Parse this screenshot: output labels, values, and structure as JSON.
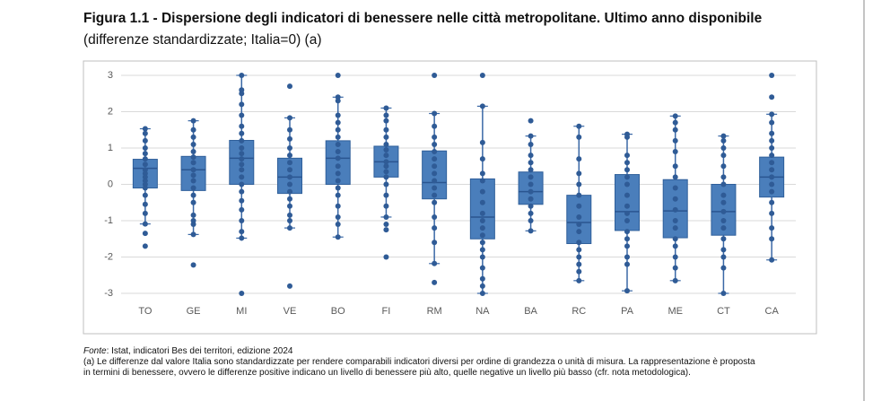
{
  "chart_data": {
    "type": "box",
    "title": "Figura 1.1 - Dispersione degli indicatori di benessere nelle città metropolitane. Ultimo anno disponibile",
    "subtitle": "(differenze standardizzate; Italia=0) (a)",
    "categories": [
      "TO",
      "GE",
      "MI",
      "VE",
      "BO",
      "FI",
      "RM",
      "NA",
      "BA",
      "RC",
      "PA",
      "ME",
      "CT",
      "CA"
    ],
    "color": "#4a7ebb",
    "point_color": "#2f5b96",
    "ylim": [
      -3,
      3
    ],
    "yticks": [
      -3,
      -2,
      -1,
      0,
      1,
      2,
      3
    ],
    "grid": true,
    "boxes": [
      {
        "low": -1.09,
        "q1": -0.1,
        "median": 0.44,
        "q3": 0.69,
        "high": 1.53,
        "points": [
          1.53,
          1.4,
          1.2,
          1.0,
          0.85,
          0.7,
          0.55,
          0.4,
          0.3,
          0.2,
          0.1,
          0,
          -0.1,
          -0.3,
          -0.55,
          -0.8,
          -1.09,
          -1.35,
          -1.7
        ]
      },
      {
        "low": -1.38,
        "q1": -0.17,
        "median": 0.4,
        "q3": 0.77,
        "high": 1.75,
        "points": [
          1.75,
          1.5,
          1.3,
          1.1,
          0.9,
          0.75,
          0.6,
          0.4,
          0.25,
          0.1,
          -0.1,
          -0.3,
          -0.5,
          -0.85,
          -1.0,
          -1.1,
          -1.38,
          -2.22
        ]
      },
      {
        "low": -1.48,
        "q1": 0,
        "median": 0.72,
        "q3": 1.21,
        "high": 3,
        "points": [
          3,
          2.6,
          2.5,
          2.2,
          1.9,
          1.6,
          1.4,
          1.2,
          1.0,
          0.85,
          0.7,
          0.55,
          0.4,
          0.2,
          0,
          -0.2,
          -0.45,
          -0.7,
          -1.0,
          -1.3,
          -1.48,
          -3
        ]
      },
      {
        "low": -1.2,
        "q1": -0.25,
        "median": 0.2,
        "q3": 0.72,
        "high": 1.83,
        "points": [
          2.7,
          1.83,
          1.5,
          1.25,
          1.0,
          0.8,
          0.6,
          0.4,
          0.2,
          0,
          -0.2,
          -0.4,
          -0.6,
          -0.85,
          -1.0,
          -1.2,
          -2.8
        ]
      },
      {
        "low": -1.45,
        "q1": 0,
        "median": 0.72,
        "q3": 1.2,
        "high": 2.4,
        "points": [
          3,
          2.4,
          2.3,
          1.9,
          1.7,
          1.5,
          1.3,
          1.1,
          0.9,
          0.72,
          0.5,
          0.3,
          0.1,
          -0.1,
          -0.3,
          -0.6,
          -0.9,
          -1.1,
          -1.45
        ]
      },
      {
        "low": -0.9,
        "q1": 0.2,
        "median": 0.62,
        "q3": 1.05,
        "high": 2.1,
        "points": [
          2.1,
          1.9,
          1.75,
          1.5,
          1.3,
          1.1,
          0.95,
          0.8,
          0.62,
          0.5,
          0.35,
          0.2,
          0,
          -0.3,
          -0.6,
          -0.9,
          -1.1,
          -1.25,
          -2
        ]
      },
      {
        "low": -2.18,
        "q1": -0.4,
        "median": 0.05,
        "q3": 0.92,
        "high": 1.95,
        "points": [
          3,
          1.95,
          1.6,
          1.3,
          1.1,
          0.9,
          0.7,
          0.5,
          0.3,
          0.1,
          -0.1,
          -0.3,
          -0.5,
          -0.9,
          -1.2,
          -1.6,
          -2.18,
          -2.7
        ]
      },
      {
        "low": -3,
        "q1": -1.5,
        "median": -0.9,
        "q3": 0.15,
        "high": 2.15,
        "points": [
          3,
          2.15,
          1.15,
          0.7,
          0.3,
          0.1,
          -0.2,
          -0.5,
          -0.8,
          -1.0,
          -1.2,
          -1.4,
          -1.6,
          -1.8,
          -2.0,
          -2.3,
          -2.6,
          -2.8,
          -3
        ]
      },
      {
        "low": -1.28,
        "q1": -0.55,
        "median": -0.2,
        "q3": 0.34,
        "high": 1.33,
        "points": [
          1.75,
          1.33,
          1.1,
          0.8,
          0.6,
          0.4,
          0.2,
          0,
          -0.2,
          -0.4,
          -0.6,
          -0.8,
          -1.0,
          -1.28
        ]
      },
      {
        "low": -2.65,
        "q1": -1.63,
        "median": -1.05,
        "q3": -0.3,
        "high": 1.6,
        "points": [
          1.6,
          1.3,
          0.7,
          0.3,
          0,
          -0.3,
          -0.6,
          -0.9,
          -1.1,
          -1.3,
          -1.6,
          -1.8,
          -2.0,
          -2.2,
          -2.4,
          -2.65
        ]
      },
      {
        "low": -2.93,
        "q1": -1.27,
        "median": -0.75,
        "q3": 0.27,
        "high": 1.38,
        "points": [
          1.38,
          1.3,
          0.8,
          0.6,
          0.4,
          0.2,
          0,
          -0.3,
          -0.6,
          -0.8,
          -1.0,
          -1.3,
          -1.5,
          -1.7,
          -2.0,
          -2.2,
          -2.93
        ]
      },
      {
        "low": -2.65,
        "q1": -1.47,
        "median": -0.73,
        "q3": 0.13,
        "high": 1.88,
        "points": [
          1.88,
          1.7,
          1.5,
          1.2,
          0.9,
          0.5,
          0.2,
          -0.1,
          -0.4,
          -0.7,
          -1.0,
          -1.2,
          -1.5,
          -1.7,
          -2.0,
          -2.3,
          -2.65
        ]
      },
      {
        "low": -3,
        "q1": -1.4,
        "median": -0.75,
        "q3": 0,
        "high": 1.33,
        "points": [
          1.33,
          1.2,
          1.0,
          0.8,
          0.5,
          0.2,
          0,
          -0.3,
          -0.5,
          -0.75,
          -1.0,
          -1.2,
          -1.5,
          -1.8,
          -2.0,
          -2.3,
          -3
        ]
      },
      {
        "low": -2.08,
        "q1": -0.35,
        "median": 0.2,
        "q3": 0.75,
        "high": 1.93,
        "points": [
          3,
          2.4,
          1.93,
          1.7,
          1.4,
          1.2,
          1.0,
          0.8,
          0.6,
          0.4,
          0.2,
          0,
          -0.2,
          -0.5,
          -0.8,
          -1.2,
          -1.5,
          -2.08
        ]
      }
    ],
    "source_label": "Fonte",
    "source_text": ": Istat, indicatori Bes dei territori, edizione 2024",
    "note_lines": [
      "(a) Le differenze dal valore Italia sono standardizzate per rendere comparabili indicatori diversi per ordine di grandezza o unità di misura. La rappresentazione è proposta",
      "in termini di benessere, ovvero le differenze positive indicano un livello di benessere più alto, quelle negative un livello più basso (cfr. nota metodologica)."
    ]
  }
}
